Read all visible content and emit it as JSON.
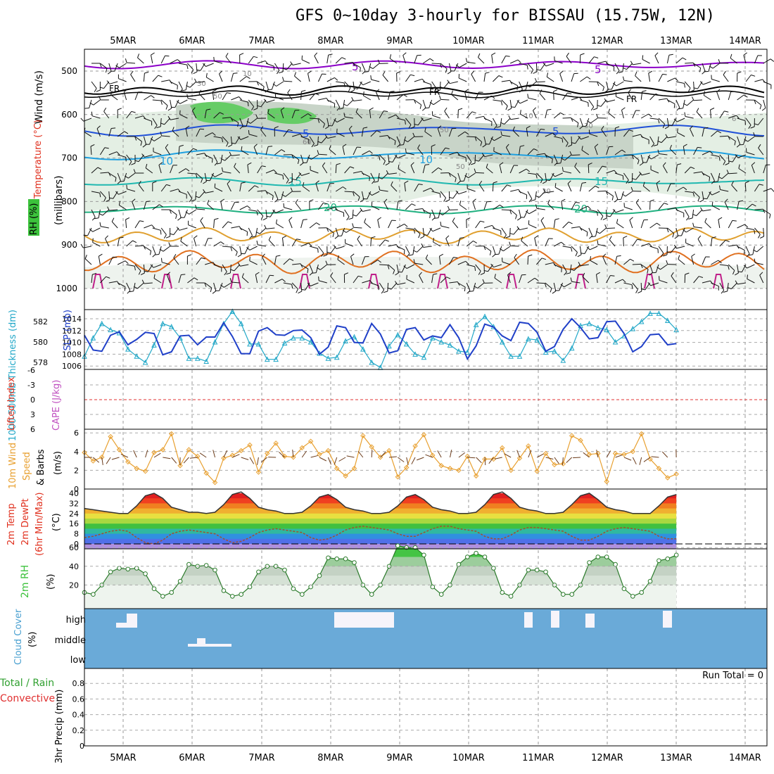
{
  "title": "GFS 0~10day 3-hourly for BISSAU (15.75W, 12N)",
  "dates": [
    "5MAR",
    "6MAR",
    "7MAR",
    "8MAR",
    "9MAR",
    "10MAR",
    "11MAR",
    "12MAR",
    "13MAR",
    "14MAR"
  ],
  "colors": {
    "rh": "#3cc23c",
    "temp_red": "#e0301e",
    "wind_purple": "#8b00c8",
    "thickness": "#22a8c8",
    "slp": "#2040c8",
    "lifted": "#e0301e",
    "cape": "#c050c0",
    "wind_speed": "#e8a030",
    "cloud": "#6aaad8",
    "precip_green": "#30a030",
    "precip_red": "#e03030"
  },
  "panels": {
    "upper": {
      "wind_label": "Wind (m/s)",
      "temperature_label": "Temperature (°C)",
      "rh_label": "RH (%)",
      "unit_label": "(millibars)",
      "y_ticks": [
        "500",
        "600",
        "700",
        "800",
        "900",
        "1000"
      ],
      "contour_labels": [
        "5",
        "5",
        "FR",
        "FR",
        "FR",
        "5",
        "5",
        "10",
        "10",
        "15",
        "15",
        "20",
        "20",
        "10",
        "30",
        "50",
        "50",
        "60",
        "50",
        "10",
        "30",
        "30",
        "6"
      ]
    },
    "thickness": {
      "label_thickness": "1000-500mb Thickness (dm)",
      "label_slp": "SLP (mb)",
      "left_ticks": [
        "582",
        "580",
        "578"
      ],
      "right_ticks": [
        "1014",
        "1012",
        "1010",
        "1008",
        "1006"
      ]
    },
    "stability": {
      "label_li": "Lifted Index",
      "label_cape": "CAPE (J/kg)",
      "ticks": [
        "-6",
        "-3",
        "0",
        "3",
        "6"
      ]
    },
    "wind10": {
      "label_a": "10m Wind",
      "label_b": "Speed",
      "label_c": "& Barbs",
      "unit": "(m/s)",
      "ticks": [
        "6",
        "4",
        "2",
        "0"
      ]
    },
    "temp2m": {
      "label_a": "2m Temp",
      "label_b": "2m DewPt",
      "label_c": "(6hr Min/Max)",
      "unit": "(°C)",
      "ticks": [
        "40",
        "32",
        "24",
        "16",
        "8",
        "0"
      ]
    },
    "rh2m": {
      "label": "2m RH",
      "unit": "(%)",
      "ticks": [
        "60",
        "40",
        "20"
      ]
    },
    "cloud": {
      "label": "Cloud Cover",
      "unit": "(%)",
      "levels": [
        "high",
        "middle",
        "low"
      ]
    },
    "precip": {
      "label_a": "Total / Rain",
      "label_b": "Convective",
      "label_c": "3hr Precip (mm)",
      "ticks": [
        "0.8",
        "0.6",
        "0.4",
        "0.2",
        "0"
      ],
      "run_total": "Run Total = 0"
    }
  },
  "chart_data": [
    {
      "type": "line",
      "title": "1000-500mb Thickness (dm) / SLP (mb)",
      "x_unit": "3-hourly steps from 4MAR 12Z",
      "series": [
        {
          "name": "1000-500mb Thickness (dm)",
          "axis": "left",
          "values": [
            578.6,
            580.4,
            581.8,
            581.2,
            580.9,
            579.3,
            578.6,
            578.0,
            579.7,
            581.8,
            581.5,
            580.4,
            578.4,
            578.4,
            578.1,
            580.0,
            581.8,
            583.0,
            581.8,
            579.8,
            579.8,
            578.3,
            578.3,
            579.9,
            580.4,
            580.4,
            580.0,
            578.9,
            578.4,
            578.5,
            580.1,
            580.5,
            579.3,
            578.0,
            577.5,
            579.6,
            580.7,
            579.8,
            578.8,
            578.5,
            580.4,
            580.0,
            579.7,
            579.1,
            579.0,
            581.7,
            582.5,
            581.5,
            580.0,
            578.6,
            578.6,
            580.3,
            580.2,
            579.0,
            579.1,
            578.2,
            579.4,
            581.6,
            581.8,
            581.4,
            581.2,
            580.0,
            580.6,
            581.3,
            582.0,
            582.8,
            582.8,
            582.1,
            581.2
          ]
        },
        {
          "name": "SLP (mb)",
          "axis": "right",
          "values": [
            1011.2,
            1008.7,
            1008.5,
            1011.2,
            1011.8,
            1009.6,
            1010.5,
            1011.7,
            1011.5,
            1007.9,
            1008.4,
            1011.1,
            1011.2,
            1009.6,
            1010.9,
            1010.9,
            1013.3,
            1011.0,
            1008.1,
            1008.1,
            1011.9,
            1012.5,
            1011.3,
            1011.2,
            1012.0,
            1012.1,
            1010.8,
            1008.0,
            1009.2,
            1012.8,
            1012.5,
            1010.0,
            1009.9,
            1013.2,
            1011.4,
            1008.2,
            1008.6,
            1012.2,
            1012.5,
            1010.4,
            1011.1,
            1010.8,
            1013.0,
            1010.8,
            1007.2,
            1009.4,
            1013.1,
            1012.6,
            1011.1,
            1010.3,
            1013.4,
            1013.2,
            1011.7,
            1008.5,
            1009.3,
            1012.2,
            1014.0,
            1012.5,
            1010.6,
            1010.8,
            1013.5,
            1013.6,
            1011.5,
            1008.4,
            1009.3,
            1011.3,
            1011.4,
            1009.6,
            1009.8
          ]
        }
      ]
    },
    {
      "type": "line",
      "title": "10m Wind Speed (m/s)",
      "series": [
        {
          "name": "10m Wind Speed",
          "values": [
            3.9,
            3.0,
            3.4,
            5.6,
            4.2,
            2.9,
            2.2,
            1.9,
            3.9,
            4.2,
            5.9,
            2.5,
            4.2,
            3.5,
            1.7,
            0.7,
            3.3,
            3.6,
            4.1,
            4.7,
            1.8,
            3.8,
            4.9,
            3.5,
            3.4,
            4.4,
            5.1,
            3.7,
            4.1,
            2.2,
            1.4,
            2.2,
            5.7,
            4.5,
            3.4,
            4.1,
            1.3,
            2.3,
            4.6,
            5.8,
            3.6,
            2.5,
            2.2,
            2.0,
            3.5,
            1.4,
            3.2,
            3.2,
            4.4,
            2.0,
            3.3,
            4.6,
            1.9,
            3.8,
            2.6,
            2.7,
            5.7,
            5.2,
            3.7,
            3.8,
            0.8,
            3.8,
            3.7,
            4.0,
            5.9,
            3.2,
            2.2,
            1.2,
            1.6
          ]
        }
      ]
    },
    {
      "type": "line",
      "title": "2m RH (%)",
      "series": [
        {
          "name": "2m RH",
          "values": [
            12,
            10,
            20,
            34,
            38,
            37,
            38,
            32,
            16,
            8,
            12,
            24,
            42,
            40,
            41,
            36,
            14,
            8,
            10,
            18,
            34,
            40,
            40,
            36,
            16,
            10,
            18,
            30,
            49,
            48,
            48,
            44,
            20,
            10,
            20,
            40,
            62,
            60,
            60,
            52,
            18,
            10,
            20,
            42,
            50,
            54,
            50,
            38,
            12,
            8,
            20,
            36,
            36,
            34,
            20,
            10,
            10,
            20,
            44,
            50,
            50,
            42,
            16,
            8,
            12,
            24,
            46,
            48,
            52
          ]
        }
      ]
    },
    {
      "type": "line",
      "title": "2m Temp / DewPt (°C)",
      "series": [
        {
          "name": "2m Temp",
          "values": [
            28,
            27,
            26,
            25,
            24,
            24,
            30,
            38,
            40,
            36,
            29,
            27,
            25,
            25,
            24,
            25,
            31,
            39,
            41,
            36,
            29,
            27,
            26,
            24,
            24,
            25,
            30,
            37,
            39,
            35,
            29,
            27,
            26,
            24,
            24,
            25,
            30,
            37,
            39,
            35,
            29,
            27,
            26,
            24,
            24,
            25,
            31,
            39,
            41,
            36,
            29,
            27,
            26,
            24,
            24,
            25,
            31,
            38,
            40,
            35,
            29,
            27,
            26,
            24,
            24,
            24,
            30,
            37,
            39
          ]
        },
        {
          "name": "2m DewPt",
          "values": [
            5,
            6,
            8,
            10,
            11,
            10,
            5,
            1,
            0,
            3,
            8,
            10,
            11,
            10,
            9,
            8,
            4,
            1,
            2,
            5,
            9,
            11,
            12,
            11,
            10,
            9,
            5,
            3,
            4,
            7,
            11,
            13,
            14,
            13,
            12,
            11,
            8,
            6,
            6,
            9,
            12,
            14,
            14,
            12,
            11,
            10,
            6,
            4,
            4,
            7,
            11,
            13,
            13,
            12,
            11,
            10,
            6,
            3,
            3,
            6,
            10,
            12,
            13,
            12,
            11,
            10,
            6,
            4,
            4
          ]
        }
      ]
    },
    {
      "type": "bar",
      "title": "3hr Precip (mm)",
      "ylim": [
        0,
        0.9
      ],
      "series": [
        {
          "name": "Total / Rain",
          "values": [
            0,
            0,
            0,
            0,
            0,
            0,
            0,
            0,
            0,
            0,
            0,
            0,
            0,
            0,
            0,
            0,
            0,
            0,
            0,
            0,
            0,
            0,
            0,
            0,
            0,
            0,
            0,
            0,
            0,
            0,
            0,
            0,
            0,
            0,
            0,
            0,
            0,
            0,
            0,
            0,
            0,
            0,
            0,
            0,
            0,
            0,
            0,
            0,
            0,
            0,
            0,
            0,
            0,
            0,
            0,
            0,
            0,
            0,
            0,
            0,
            0,
            0,
            0,
            0,
            0,
            0,
            0,
            0,
            0
          ]
        }
      ]
    }
  ]
}
